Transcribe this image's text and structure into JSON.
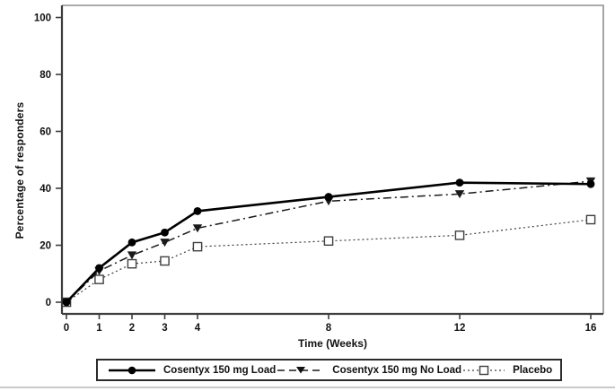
{
  "chart_data": {
    "type": "line",
    "title": "",
    "xlabel": "Time (Weeks)",
    "ylabel": "Percentage of responders",
    "x_ticks": [
      0,
      1,
      2,
      3,
      4,
      8,
      12,
      16
    ],
    "y_ticks": [
      0,
      20,
      40,
      60,
      80,
      100
    ],
    "xlim": [
      0,
      16
    ],
    "ylim": [
      0,
      100
    ],
    "grid": false,
    "legend_position": "bottom",
    "x": [
      0,
      1,
      2,
      3,
      4,
      8,
      12,
      16
    ],
    "series": [
      {
        "name": "Cosentyx 150 mg Load",
        "line": "solid",
        "marker": "filled-circle",
        "color": "#000000",
        "values": [
          0,
          12,
          21,
          24.5,
          32,
          37,
          42,
          41.5
        ]
      },
      {
        "name": "Cosentyx 150 mg No Load",
        "line": "dash-dot",
        "marker": "filled-triangle-down",
        "color": "#1a1a1a",
        "values": [
          0,
          11,
          16.5,
          21,
          26,
          35.5,
          38,
          42.5
        ]
      },
      {
        "name": "Placebo",
        "line": "dotted",
        "marker": "open-square",
        "color": "#3f3f3f",
        "values": [
          0,
          8,
          13.5,
          14.5,
          19.5,
          21.5,
          23.5,
          29
        ]
      }
    ],
    "colors": {
      "axis": "#3d3d3d",
      "frame": "#8f8f8f",
      "text": "#111111",
      "background": "#ffffff"
    }
  }
}
